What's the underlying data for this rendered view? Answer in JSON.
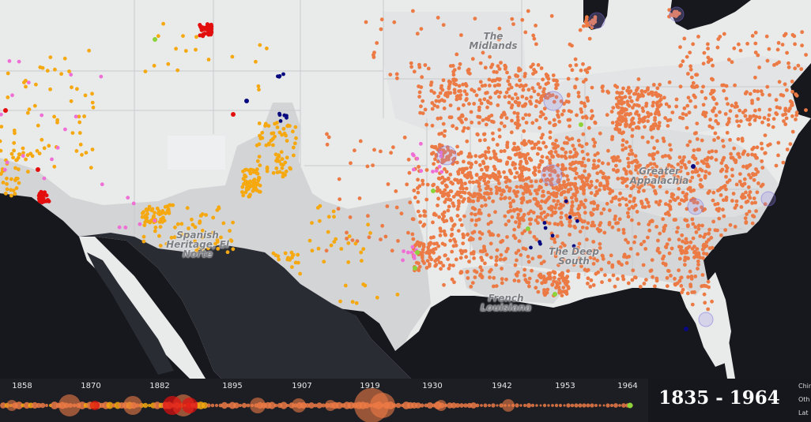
{
  "colors": {
    "anglo": "#ec7a45",
    "hispanic": "#f5a80f",
    "black": "#08097e",
    "native": "#ef6fd5",
    "chinese": "#8cd33a",
    "other": "#e30e0e",
    "land": "#e9ebea",
    "region": "#d7d9db",
    "water": "#17181e"
  },
  "region_labels": [
    {
      "id": "midlands",
      "lines": [
        "The",
        "Midlands"
      ]
    },
    {
      "id": "greater-appalachia",
      "lines": [
        "Greater",
        "Appalachia"
      ]
    },
    {
      "id": "spanish-heritage",
      "lines": [
        "Spanish",
        "Heritage, El",
        "Norte"
      ]
    },
    {
      "id": "deep-south",
      "lines": [
        "The Deep",
        "South"
      ]
    },
    {
      "id": "french-louisiana",
      "lines": [
        "French",
        "Louisiana"
      ]
    }
  ],
  "timeline": {
    "ticks": [
      "1858",
      "1870",
      "1882",
      "1895",
      "1907",
      "1919",
      "1930",
      "1942",
      "1953",
      "1964"
    ]
  },
  "range": {
    "label": "1835 - 1964"
  },
  "legend": {
    "items": [
      "Chin",
      "Oth",
      "Lat"
    ]
  }
}
